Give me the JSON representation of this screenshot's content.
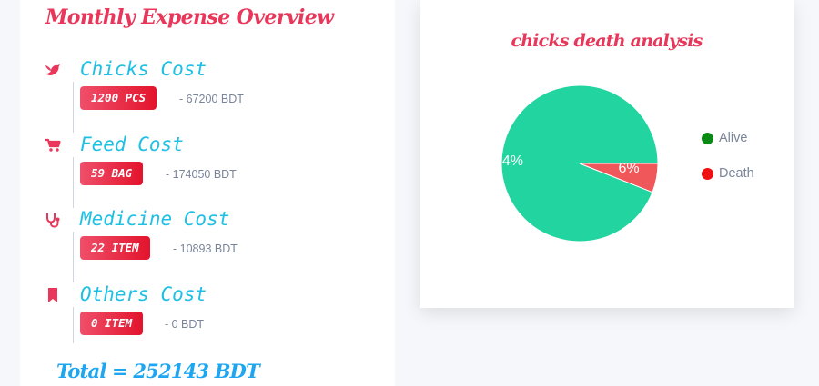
{
  "overview": {
    "title": "Monthly Expense Overview",
    "items": [
      {
        "icon": "bird-icon",
        "name": "Chicks Cost",
        "badge": "1200 PCS",
        "amount": "- 67200 BDT"
      },
      {
        "icon": "cart-icon",
        "name": "Feed Cost",
        "badge": "59 BAG",
        "amount": "- 174050 BDT"
      },
      {
        "icon": "stethoscope-icon",
        "name": "Medicine Cost",
        "badge": "22 ITEM",
        "amount": "- 10893 BDT"
      },
      {
        "icon": "bookmark-icon",
        "name": "Others Cost",
        "badge": "0 ITEM",
        "amount": "- 0 BDT"
      }
    ],
    "total": "Total = 252143 BDT"
  },
  "colors": {
    "accent_red": "#e8375a",
    "accent_cyan": "#1ec0e4",
    "total_blue": "#1ea6f0",
    "slice_alive": "#21d4a0",
    "slice_death": "#f0575b",
    "legend_alive": "#0a8a14",
    "legend_death": "#ee1111"
  },
  "chart_data": {
    "type": "pie",
    "title": "chicks death analysis",
    "labels": [
      "Alive",
      "Death"
    ],
    "values": [
      94,
      6
    ],
    "data_labels": [
      "94%",
      "6%"
    ],
    "legend_placement": "right"
  }
}
